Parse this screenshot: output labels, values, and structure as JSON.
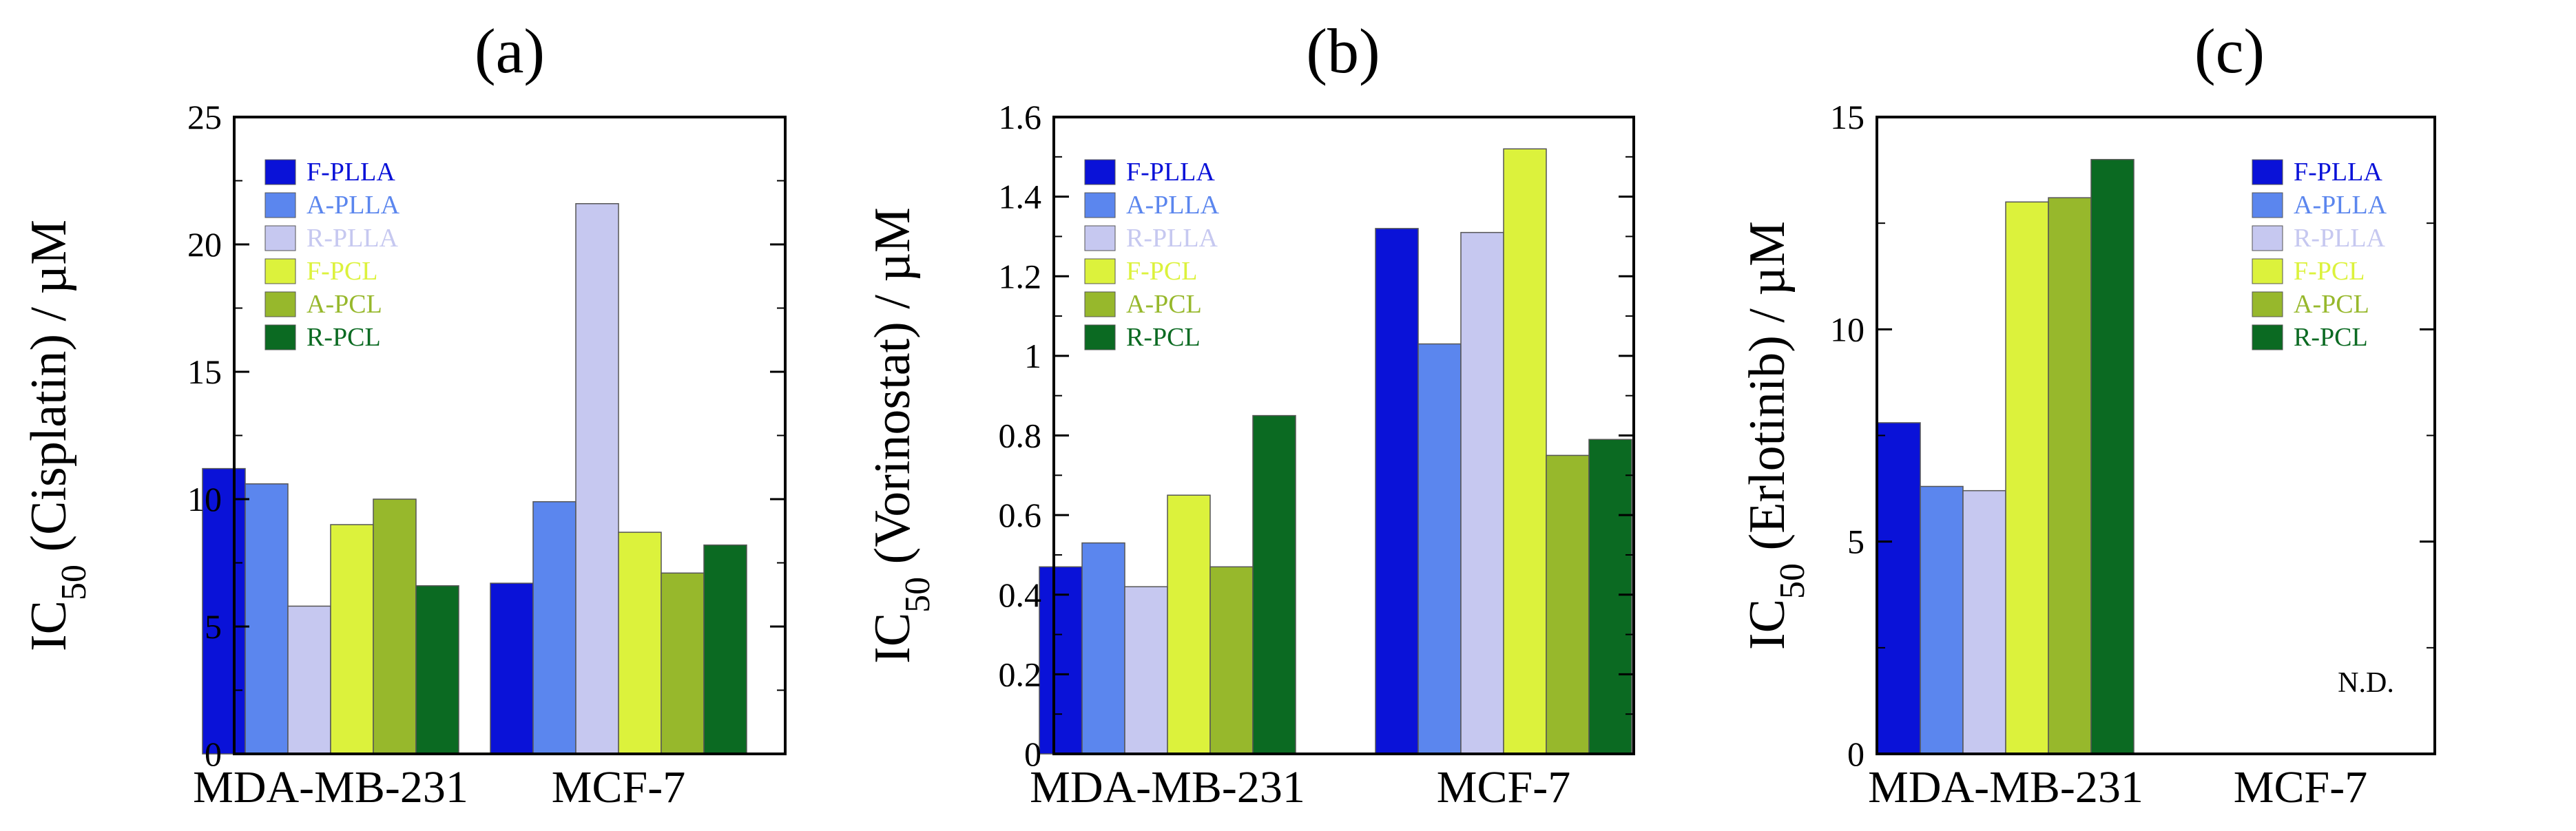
{
  "colors": {
    "F-PLLA": "#0a12d8",
    "A-PLLA": "#5b86ee",
    "R-PLLA": "#c6c8f0",
    "F-PCL": "#dcf23c",
    "A-PCL": "#97b82c",
    "R-PCL": "#0b6a22"
  },
  "chart_data": [
    {
      "type": "bar",
      "panel": "(a)",
      "ylabel_main": "IC",
      "ylabel_sub": "50",
      "ylabel_rest": " (Cisplatin) / µM",
      "categories": [
        "MDA-MB-231",
        "MCF-7"
      ],
      "ylim": [
        0,
        25
      ],
      "yticks": [
        "0",
        "5",
        "10",
        "15",
        "20",
        "25"
      ],
      "series": [
        {
          "name": "F-PLLA",
          "values": [
            11.2,
            6.7
          ]
        },
        {
          "name": "A-PLLA",
          "values": [
            10.6,
            9.9
          ]
        },
        {
          "name": "R-PLLA",
          "values": [
            5.8,
            21.6
          ]
        },
        {
          "name": "F-PCL",
          "values": [
            9.0,
            8.7
          ]
        },
        {
          "name": "A-PCL",
          "values": [
            10.0,
            7.1
          ]
        },
        {
          "name": "R-PCL",
          "values": [
            6.6,
            8.2
          ]
        }
      ],
      "legend": "top-left",
      "annotation": ""
    },
    {
      "type": "bar",
      "panel": "(b)",
      "ylabel_main": "IC",
      "ylabel_sub": "50",
      "ylabel_rest": " (Vorinostat) / µM",
      "categories": [
        "MDA-MB-231",
        "MCF-7"
      ],
      "ylim": [
        0,
        1.6
      ],
      "yticks": [
        "0",
        "0.2",
        "0.4",
        "0.6",
        "0.8",
        "1",
        "1.2",
        "1.4",
        "1.6"
      ],
      "series": [
        {
          "name": "F-PLLA",
          "values": [
            0.47,
            1.32
          ]
        },
        {
          "name": "A-PLLA",
          "values": [
            0.53,
            1.03
          ]
        },
        {
          "name": "R-PLLA",
          "values": [
            0.42,
            1.31
          ]
        },
        {
          "name": "F-PCL",
          "values": [
            0.65,
            1.52
          ]
        },
        {
          "name": "A-PCL",
          "values": [
            0.47,
            0.75
          ]
        },
        {
          "name": "R-PCL",
          "values": [
            0.85,
            0.79
          ]
        }
      ],
      "legend": "top-left",
      "annotation": ""
    },
    {
      "type": "bar",
      "panel": "(c)",
      "ylabel_main": "IC",
      "ylabel_sub": "50",
      "ylabel_rest": " (Erlotinib) / µM",
      "categories": [
        "MDA-MB-231",
        "MCF-7"
      ],
      "ylim": [
        0,
        15
      ],
      "yticks": [
        "0",
        "5",
        "10",
        "15"
      ],
      "series": [
        {
          "name": "F-PLLA",
          "values": [
            7.8,
            null
          ]
        },
        {
          "name": "A-PLLA",
          "values": [
            6.3,
            null
          ]
        },
        {
          "name": "R-PLLA",
          "values": [
            6.2,
            null
          ]
        },
        {
          "name": "F-PCL",
          "values": [
            13.0,
            null
          ]
        },
        {
          "name": "A-PCL",
          "values": [
            13.1,
            null
          ]
        },
        {
          "name": "R-PCL",
          "values": [
            14.0,
            null
          ]
        }
      ],
      "legend": "top-right",
      "annotation": "N.D."
    }
  ]
}
